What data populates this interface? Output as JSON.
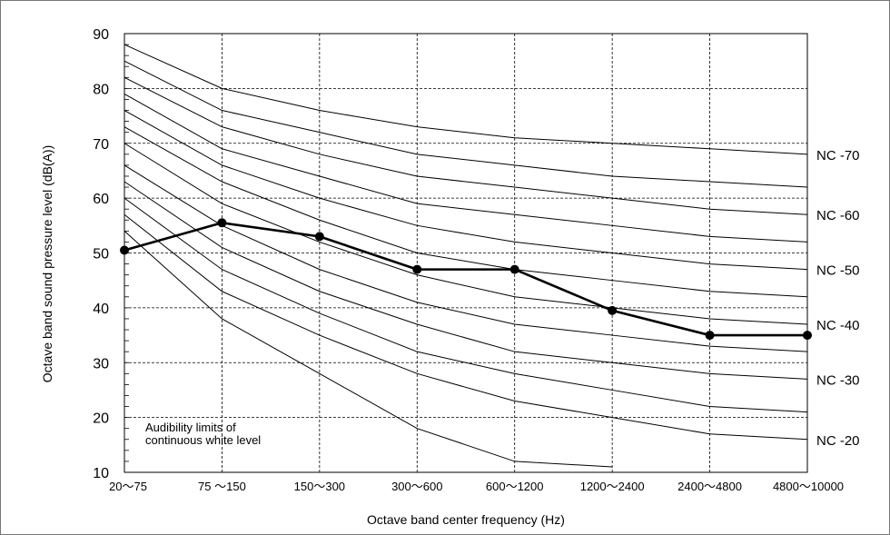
{
  "chart_data": {
    "type": "line",
    "xlabel": "Octave band center frequency (Hz)",
    "ylabel": "Octave band sound pressure level (dB(A))",
    "categories": [
      "20～75",
      "75 ～150",
      "150～300",
      "300～600",
      "600～1200",
      "1200～2400",
      "2400～4800",
      "4800～10000"
    ],
    "ylim": [
      10,
      90
    ],
    "yticks": [
      10,
      20,
      30,
      40,
      50,
      60,
      70,
      80,
      90
    ],
    "grid": true,
    "annotation": "Audibility limits of\ncontinuous white level",
    "nc_curves": [
      {
        "values": [
          54,
          38,
          28,
          18,
          12,
          11,
          null,
          null
        ]
      },
      {
        "values": [
          57,
          43,
          35,
          28,
          23,
          20,
          17,
          16
        ],
        "label": "NC -20"
      },
      {
        "values": [
          60,
          47,
          39,
          32,
          28,
          25,
          22,
          21
        ]
      },
      {
        "values": [
          63,
          51,
          43,
          37,
          32,
          30,
          28,
          27
        ],
        "label": "NC -30"
      },
      {
        "values": [
          66,
          55,
          47,
          41,
          37,
          35,
          33,
          32
        ]
      },
      {
        "values": [
          70,
          59,
          52,
          46,
          42,
          40,
          38,
          37
        ],
        "label": "NC -40"
      },
      {
        "values": [
          73,
          63,
          56,
          50,
          47,
          45,
          43,
          42
        ]
      },
      {
        "values": [
          76,
          66,
          60,
          55,
          52,
          50,
          48,
          47
        ],
        "label": "NC -50"
      },
      {
        "values": [
          79,
          69,
          64,
          59,
          57,
          55,
          53,
          52
        ]
      },
      {
        "values": [
          82,
          73,
          68,
          64,
          62,
          60,
          58,
          57
        ],
        "label": "NC -60"
      },
      {
        "values": [
          85,
          76,
          72,
          68,
          66,
          64,
          63,
          62
        ]
      },
      {
        "values": [
          88,
          80,
          76,
          73,
          71,
          70,
          69,
          68
        ],
        "label": "NC -70"
      }
    ],
    "series": [
      {
        "values": [
          50.5,
          55.5,
          53,
          47,
          47,
          39.5,
          35,
          35
        ]
      }
    ]
  }
}
